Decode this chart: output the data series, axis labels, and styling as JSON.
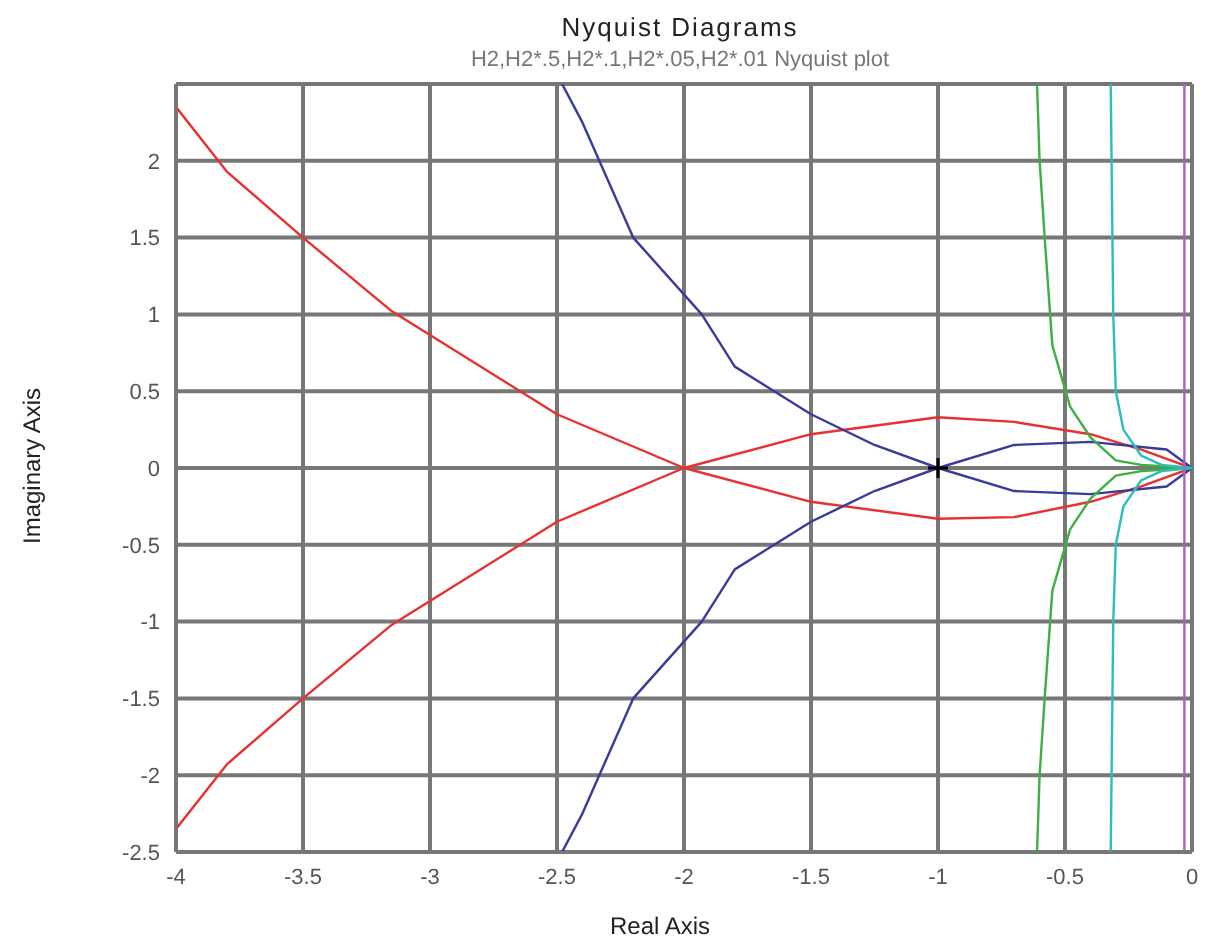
{
  "chart_data": {
    "type": "line",
    "title": "Nyquist Diagrams",
    "subtitle": "H2,H2*.5,H2*.1,H2*.05,H2*.01 Nyquist plot",
    "xlabel": "Real Axis",
    "ylabel": "Imaginary Axis",
    "xlim": [
      -4,
      0
    ],
    "xticks": [
      -4,
      -3.5,
      -3,
      -2.5,
      -2,
      -1.5,
      -1,
      -0.5,
      0
    ],
    "ylim": [
      -2.5,
      2.5
    ],
    "yticks": [
      -2.5,
      -2,
      -1.5,
      -1,
      -0.5,
      0,
      0.5,
      1,
      1.5,
      2
    ],
    "grid": true,
    "marker": "none",
    "line_style": "solid",
    "series": [
      {
        "color": "#e8312f",
        "x": [
          -4,
          -3.8,
          -3.5,
          -3.15,
          -2.5,
          -2,
          -1.5,
          -1,
          -0.7,
          -0.4,
          -0.2,
          0,
          -0.2,
          -0.4,
          -0.7,
          -1,
          -1.5,
          -2,
          -2.5,
          -3.15,
          -3.5,
          -3.8,
          -4
        ],
        "values": [
          2.35,
          1.93,
          1.5,
          1.02,
          0.35,
          0,
          -0.22,
          -0.33,
          -0.32,
          -0.22,
          -0.12,
          0,
          0.12,
          0.22,
          0.3,
          0.33,
          0.22,
          0,
          -0.35,
          -1.02,
          -1.5,
          -1.93,
          -2.35
        ]
      },
      {
        "color": "#3a3a9a",
        "x": [
          -2.48,
          -2.4,
          -2.2,
          -1.93,
          -1.8,
          -1.5,
          -1.25,
          -1,
          -0.7,
          -0.4,
          -0.1,
          0,
          -0.1,
          -0.4,
          -0.7,
          -1,
          -1.25,
          -1.5,
          -1.8,
          -1.93,
          -2.2,
          -2.4,
          -2.48
        ],
        "values": [
          2.5,
          2.25,
          1.5,
          1,
          0.66,
          0.35,
          0.15,
          0,
          -0.15,
          -0.17,
          -0.12,
          0,
          0.12,
          0.17,
          0.15,
          0,
          -0.15,
          -0.35,
          -0.66,
          -1,
          -1.5,
          -2.25,
          -2.5
        ]
      },
      {
        "color": "#3cb043",
        "x": [
          -0.61,
          -0.6,
          -0.58,
          -0.55,
          -0.48,
          -0.4,
          -0.3,
          -0.2,
          -0.1,
          0,
          -0.1,
          -0.2,
          -0.3,
          -0.4,
          -0.48,
          -0.55,
          -0.58,
          -0.6,
          -0.61
        ],
        "values": [
          2.5,
          2,
          1.5,
          0.8,
          0.4,
          0.2,
          0.05,
          0.02,
          0.01,
          0,
          -0.01,
          -0.02,
          -0.05,
          -0.2,
          -0.4,
          -0.8,
          -1.5,
          -2,
          -2.5
        ]
      },
      {
        "color": "#2abfbf",
        "x": [
          -0.32,
          -0.31,
          -0.3,
          -0.27,
          -0.2,
          -0.12,
          0,
          -0.12,
          -0.2,
          -0.27,
          -0.3,
          -0.31,
          -0.32
        ],
        "values": [
          2.5,
          1,
          0.5,
          0.25,
          0.08,
          0.02,
          0,
          -0.02,
          -0.08,
          -0.25,
          -0.5,
          -1,
          -2.5
        ]
      },
      {
        "color": "#b060c0",
        "x": [
          -0.03,
          -0.03
        ],
        "values": [
          2.5,
          -2.5
        ]
      },
      {
        "type": "scatter",
        "marker": "cross",
        "color": "#000000",
        "x": [
          -1
        ],
        "values": [
          0
        ]
      }
    ]
  }
}
